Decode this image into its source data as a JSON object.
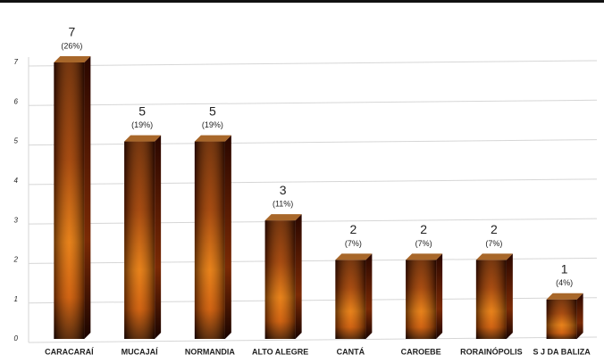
{
  "chart_data": {
    "type": "bar3d",
    "categories": [
      "CARACARAÍ",
      "MUCAJAÍ",
      "NORMANDIA",
      "ALTO ALEGRE",
      "CANTÁ",
      "CAROEBE",
      "RORAINÓPOLIS",
      "S J DA BALIZA"
    ],
    "values": [
      7,
      5,
      5,
      3,
      2,
      2,
      2,
      1
    ],
    "percent_labels": [
      "(26%)",
      "(19%)",
      "(19%)",
      "(11%)",
      "(7%)",
      "(7%)",
      "(7%)",
      "(4%)"
    ],
    "ylim": [
      0,
      7
    ],
    "yticks": [
      0,
      1,
      2,
      3,
      4,
      5,
      6,
      7
    ],
    "grid": true
  }
}
